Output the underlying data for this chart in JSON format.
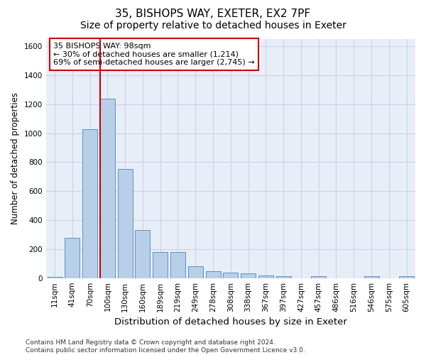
{
  "title_line1": "35, BISHOPS WAY, EXETER, EX2 7PF",
  "title_line2": "Size of property relative to detached houses in Exeter",
  "xlabel": "Distribution of detached houses by size in Exeter",
  "ylabel": "Number of detached properties",
  "bin_labels": [
    "11sqm",
    "41sqm",
    "70sqm",
    "100sqm",
    "130sqm",
    "160sqm",
    "189sqm",
    "219sqm",
    "249sqm",
    "278sqm",
    "308sqm",
    "338sqm",
    "367sqm",
    "397sqm",
    "427sqm",
    "457sqm",
    "486sqm",
    "516sqm",
    "546sqm",
    "575sqm",
    "605sqm"
  ],
  "bar_heights": [
    10,
    280,
    1030,
    1240,
    755,
    330,
    180,
    180,
    80,
    45,
    40,
    35,
    20,
    15,
    0,
    15,
    0,
    0,
    15,
    0,
    15
  ],
  "bar_color": "#b8cfe8",
  "bar_edgecolor": "#6090c0",
  "vline_x": 2.575,
  "vline_color": "#cc0000",
  "annotation_line1": "35 BISHOPS WAY: 98sqm",
  "annotation_line2": "← 30% of detached houses are smaller (1,214)",
  "annotation_line3": "69% of semi-detached houses are larger (2,745) →",
  "annotation_box_facecolor": "white",
  "annotation_box_edgecolor": "#cc0000",
  "ylim": [
    0,
    1650
  ],
  "yticks": [
    0,
    200,
    400,
    600,
    800,
    1000,
    1200,
    1400,
    1600
  ],
  "grid_color": "#c8d4e4",
  "background_color": "#e8eef8",
  "footer_text": "Contains HM Land Registry data © Crown copyright and database right 2024.\nContains public sector information licensed under the Open Government Licence v3.0.",
  "title_fontsize": 11,
  "subtitle_fontsize": 10,
  "xlabel_fontsize": 9.5,
  "ylabel_fontsize": 8.5,
  "tick_fontsize": 7.5,
  "annot_fontsize": 8,
  "footer_fontsize": 6.5
}
